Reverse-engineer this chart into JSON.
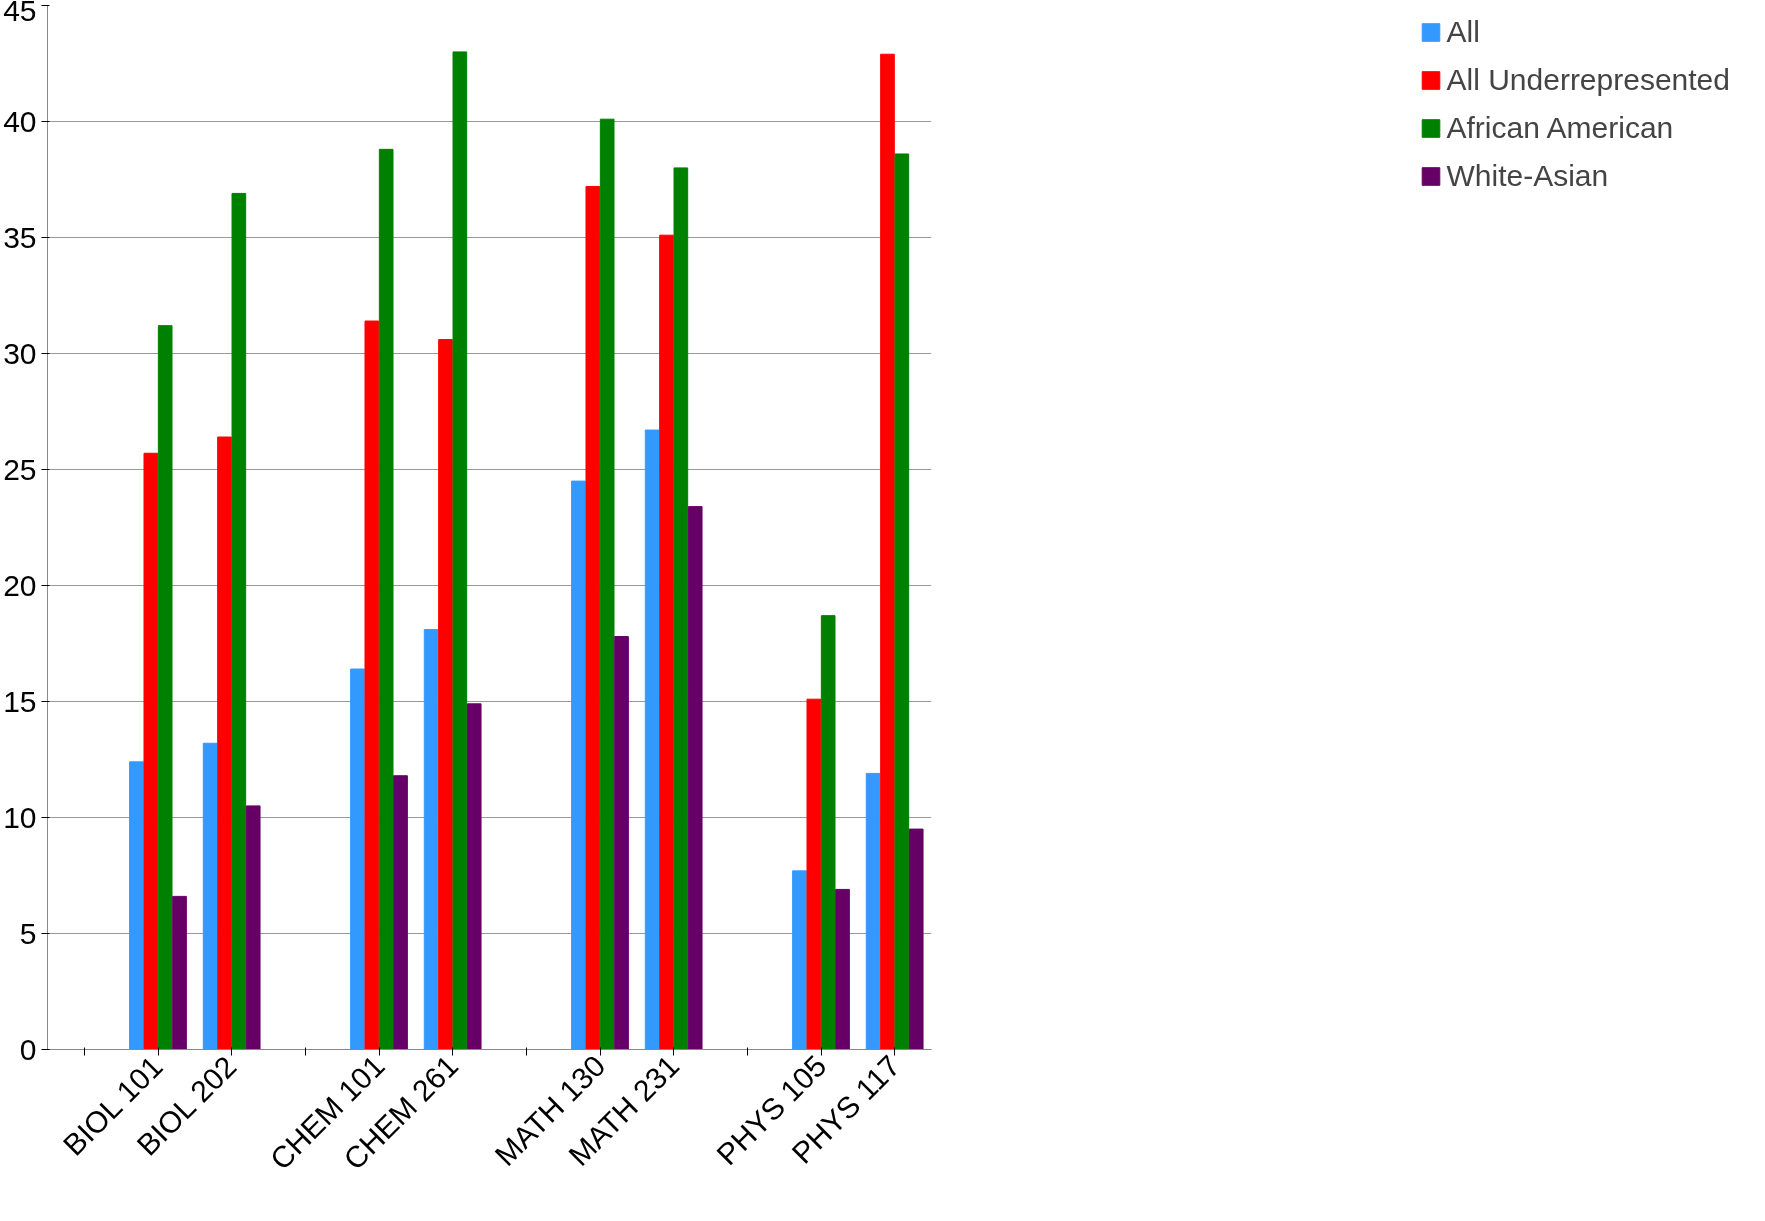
{
  "chart_data": {
    "type": "bar",
    "categories": [
      null,
      "BIOL 101",
      "BIOL 202",
      null,
      "CHEM 101",
      "CHEM 261",
      null,
      "MATH 130",
      "MATH 231",
      null,
      "PHYS 105",
      "PHYS 117"
    ],
    "series": [
      {
        "name": "All",
        "color": "#3399ff",
        "values": [
          null,
          12.4,
          13.2,
          null,
          16.4,
          18.1,
          null,
          24.5,
          26.7,
          null,
          7.7,
          11.9
        ]
      },
      {
        "name": "All Underrepresented",
        "color": "#ff0000",
        "values": [
          null,
          25.7,
          26.4,
          null,
          31.4,
          30.6,
          null,
          37.2,
          35.1,
          null,
          15.1,
          42.9
        ]
      },
      {
        "name": "African American",
        "color": "#008000",
        "values": [
          null,
          31.2,
          36.9,
          null,
          38.8,
          43.0,
          null,
          40.1,
          38.0,
          null,
          18.7,
          38.6
        ]
      },
      {
        "name": "White-Asian",
        "color": "#660066",
        "values": [
          null,
          6.6,
          10.5,
          null,
          11.8,
          14.9,
          null,
          17.8,
          23.4,
          null,
          6.9,
          9.5
        ]
      }
    ],
    "ylim": [
      0,
      45
    ],
    "yticks": [
      0,
      5,
      10,
      15,
      20,
      25,
      30,
      35,
      40,
      45
    ],
    "grid": "y",
    "legend": "right"
  }
}
